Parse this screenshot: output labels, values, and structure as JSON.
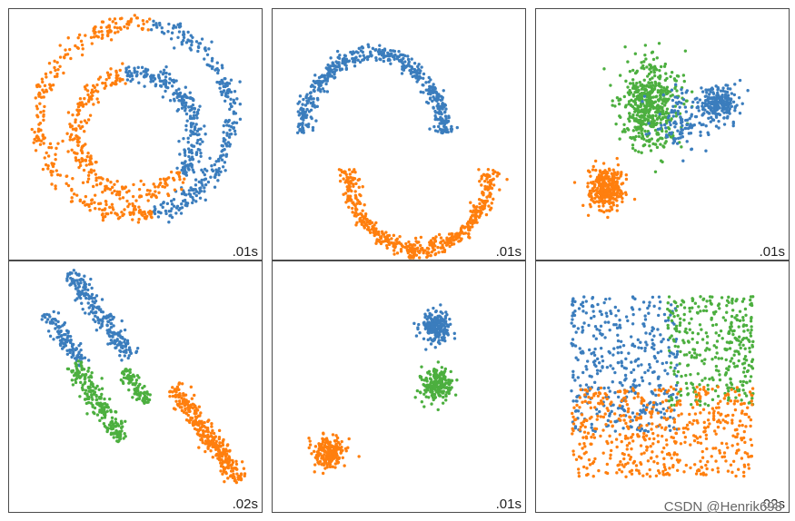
{
  "colors": {
    "blue": "#3b7dbd",
    "orange": "#ff7f0e",
    "green": "#4caf3f"
  },
  "watermark": "CSDN @Henrik698",
  "chart_data": [
    {
      "type": "scatter",
      "title": "",
      "timing": ".01s",
      "clusters": [
        {
          "series": "blue",
          "shape": "ring",
          "center": [
            0.5,
            0.44
          ],
          "radius": [
            0.38,
            0.38
          ],
          "theta": [
            -80,
            80
          ],
          "points": 280
        },
        {
          "series": "orange",
          "shape": "ring",
          "center": [
            0.5,
            0.44
          ],
          "radius": [
            0.38,
            0.38
          ],
          "theta": [
            80,
            280
          ],
          "points": 280
        },
        {
          "series": "blue",
          "shape": "ring",
          "center": [
            0.5,
            0.5
          ],
          "radius": [
            0.24,
            0.24
          ],
          "theta": [
            -100,
            40
          ],
          "points": 250
        },
        {
          "series": "orange",
          "shape": "ring",
          "center": [
            0.5,
            0.5
          ],
          "radius": [
            0.24,
            0.24
          ],
          "theta": [
            40,
            260
          ],
          "points": 250
        }
      ]
    },
    {
      "type": "scatter",
      "title": "",
      "timing": ".01s",
      "clusters": [
        {
          "series": "blue",
          "shape": "arc",
          "center": [
            0.4,
            0.5
          ],
          "radius": [
            0.28,
            0.32
          ],
          "theta": [
            180,
            360
          ],
          "points": 500
        },
        {
          "series": "orange",
          "shape": "arc",
          "center": [
            0.58,
            0.64
          ],
          "radius": [
            0.28,
            0.32
          ],
          "theta": [
            0,
            180
          ],
          "points": 500
        }
      ]
    },
    {
      "type": "scatter",
      "title": "",
      "timing": ".01s",
      "clusters": [
        {
          "series": "green",
          "shape": "gauss",
          "center": [
            0.45,
            0.38
          ],
          "radius": [
            0.12,
            0.18
          ],
          "points": 520
        },
        {
          "series": "blue",
          "shape": "gauss",
          "center": [
            0.73,
            0.37
          ],
          "radius": [
            0.07,
            0.07
          ],
          "points": 220
        },
        {
          "series": "blue",
          "shape": "gauss",
          "center": [
            0.58,
            0.45
          ],
          "radius": [
            0.1,
            0.12
          ],
          "points": 120
        },
        {
          "series": "orange",
          "shape": "gauss",
          "center": [
            0.28,
            0.72
          ],
          "radius": [
            0.07,
            0.08
          ],
          "points": 320
        }
      ]
    },
    {
      "type": "scatter",
      "title": "",
      "timing": ".02s",
      "clusters": [
        {
          "series": "blue",
          "shape": "band",
          "center": [
            0.36,
            0.21
          ],
          "length": 0.42,
          "width": 0.06,
          "angle": 55,
          "points": 220
        },
        {
          "series": "blue",
          "shape": "band",
          "center": [
            0.22,
            0.31
          ],
          "length": 0.26,
          "width": 0.05,
          "angle": 55,
          "points": 120
        },
        {
          "series": "green",
          "shape": "band",
          "center": [
            0.35,
            0.56
          ],
          "length": 0.36,
          "width": 0.06,
          "angle": 55,
          "points": 220
        },
        {
          "series": "green",
          "shape": "band",
          "center": [
            0.5,
            0.5
          ],
          "length": 0.16,
          "width": 0.04,
          "angle": 55,
          "points": 100
        },
        {
          "series": "orange",
          "shape": "band",
          "center": [
            0.78,
            0.69
          ],
          "length": 0.46,
          "width": 0.06,
          "angle": 55,
          "points": 320
        }
      ]
    },
    {
      "type": "scatter",
      "title": "",
      "timing": ".01s",
      "clusters": [
        {
          "series": "blue",
          "shape": "gauss",
          "center": [
            0.65,
            0.26
          ],
          "radius": [
            0.06,
            0.06
          ],
          "points": 220
        },
        {
          "series": "green",
          "shape": "gauss",
          "center": [
            0.65,
            0.49
          ],
          "radius": [
            0.06,
            0.06
          ],
          "points": 220
        },
        {
          "series": "orange",
          "shape": "gauss",
          "center": [
            0.22,
            0.76
          ],
          "radius": [
            0.06,
            0.06
          ],
          "points": 220
        }
      ]
    },
    {
      "type": "scatter",
      "title": "",
      "timing": ".02s",
      "clusters": [
        {
          "series": "blue",
          "shape": "rect",
          "x": [
            0.14,
            0.56
          ],
          "y": [
            0.14,
            0.68
          ],
          "points": 420
        },
        {
          "series": "green",
          "shape": "rect",
          "x": [
            0.52,
            0.86
          ],
          "y": [
            0.14,
            0.58
          ],
          "points": 340
        },
        {
          "series": "orange",
          "shape": "rect",
          "x": [
            0.14,
            0.86
          ],
          "y": [
            0.5,
            0.86
          ],
          "points": 520
        }
      ]
    }
  ]
}
